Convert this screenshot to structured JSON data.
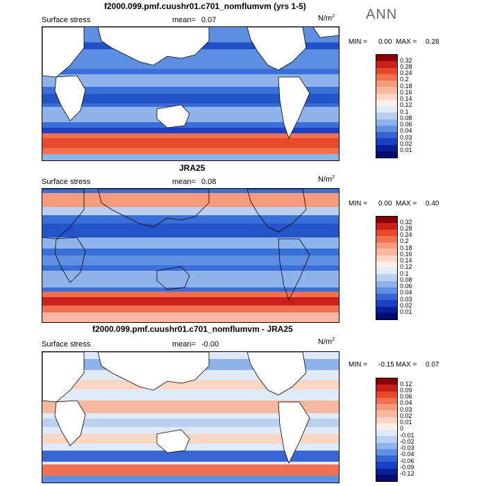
{
  "season": "ANN",
  "panels": [
    {
      "title": "f2000.099.pmf.cuushr01.c701_nomflumvm (yrs 1-5)",
      "variable": "Surface stress",
      "mean_label": "mean=",
      "mean_value": "0.07",
      "units": "N/m",
      "units_exp": "2",
      "min_label": "MIN =",
      "min_value": "0.00",
      "max_label": "MAX =",
      "max_value": "0.28",
      "levels": [
        "0.32",
        "0.28",
        "0.24",
        "0.2",
        "0.18",
        "0.16",
        "0.14",
        "0.12",
        "0.1",
        "0.08",
        "0.06",
        "0.04",
        "0.03",
        "0.02",
        "0.01"
      ],
      "colors": [
        "#8b0000",
        "#c8201a",
        "#e64a2a",
        "#f07050",
        "#f59a7a",
        "#f8b8a0",
        "#fbd6c4",
        "#fdeee6",
        "#dfeaf8",
        "#b9d0f0",
        "#8eb2ea",
        "#5f8fe0",
        "#3766d4",
        "#1a40c4",
        "#0a1e98",
        "#000c6e"
      ]
    },
    {
      "title": "JRA25",
      "variable": "Surface stress",
      "mean_label": "mean=",
      "mean_value": "0.08",
      "units": "N/m",
      "units_exp": "2",
      "min_label": "MIN =",
      "min_value": "0.00",
      "max_label": "MAX =",
      "max_value": "0.40",
      "levels": [
        "0.32",
        "0.28",
        "0.24",
        "0.2",
        "0.18",
        "0.16",
        "0.14",
        "0.12",
        "0.1",
        "0.08",
        "0.06",
        "0.04",
        "0.03",
        "0.02",
        "0.01"
      ],
      "colors": [
        "#8b0000",
        "#c8201a",
        "#e64a2a",
        "#f07050",
        "#f59a7a",
        "#f8b8a0",
        "#fbd6c4",
        "#fdeee6",
        "#dfeaf8",
        "#b9d0f0",
        "#8eb2ea",
        "#5f8fe0",
        "#3766d4",
        "#1a40c4",
        "#0a1e98",
        "#000c6e"
      ]
    },
    {
      "title": "f2000.099.pmf.cuushr01.c701_nomflumvm - JRA25",
      "variable": "Surface stress",
      "mean_label": "mean=",
      "mean_value": "-0.00",
      "units": "N/m",
      "units_exp": "2",
      "min_label": "MIN =",
      "min_value": "-0.15",
      "max_label": "MAX =",
      "max_value": "0.07",
      "levels": [
        "0.12",
        "0.09",
        "0.06",
        "0.04",
        "0.03",
        "0.02",
        "0.01",
        "0",
        "-0.01",
        "-0.02",
        "-0.03",
        "-0.04",
        "-0.06",
        "-0.09",
        "-0.12"
      ],
      "colors": [
        "#8b0000",
        "#c8201a",
        "#e64a2a",
        "#f07050",
        "#f59a7a",
        "#f8b8a0",
        "#fbd6c4",
        "#fdeee6",
        "#dfeaf8",
        "#b9d0f0",
        "#8eb2ea",
        "#5f8fe0",
        "#3766d4",
        "#1a40c4",
        "#0a1e98",
        "#000c6e"
      ]
    }
  ]
}
